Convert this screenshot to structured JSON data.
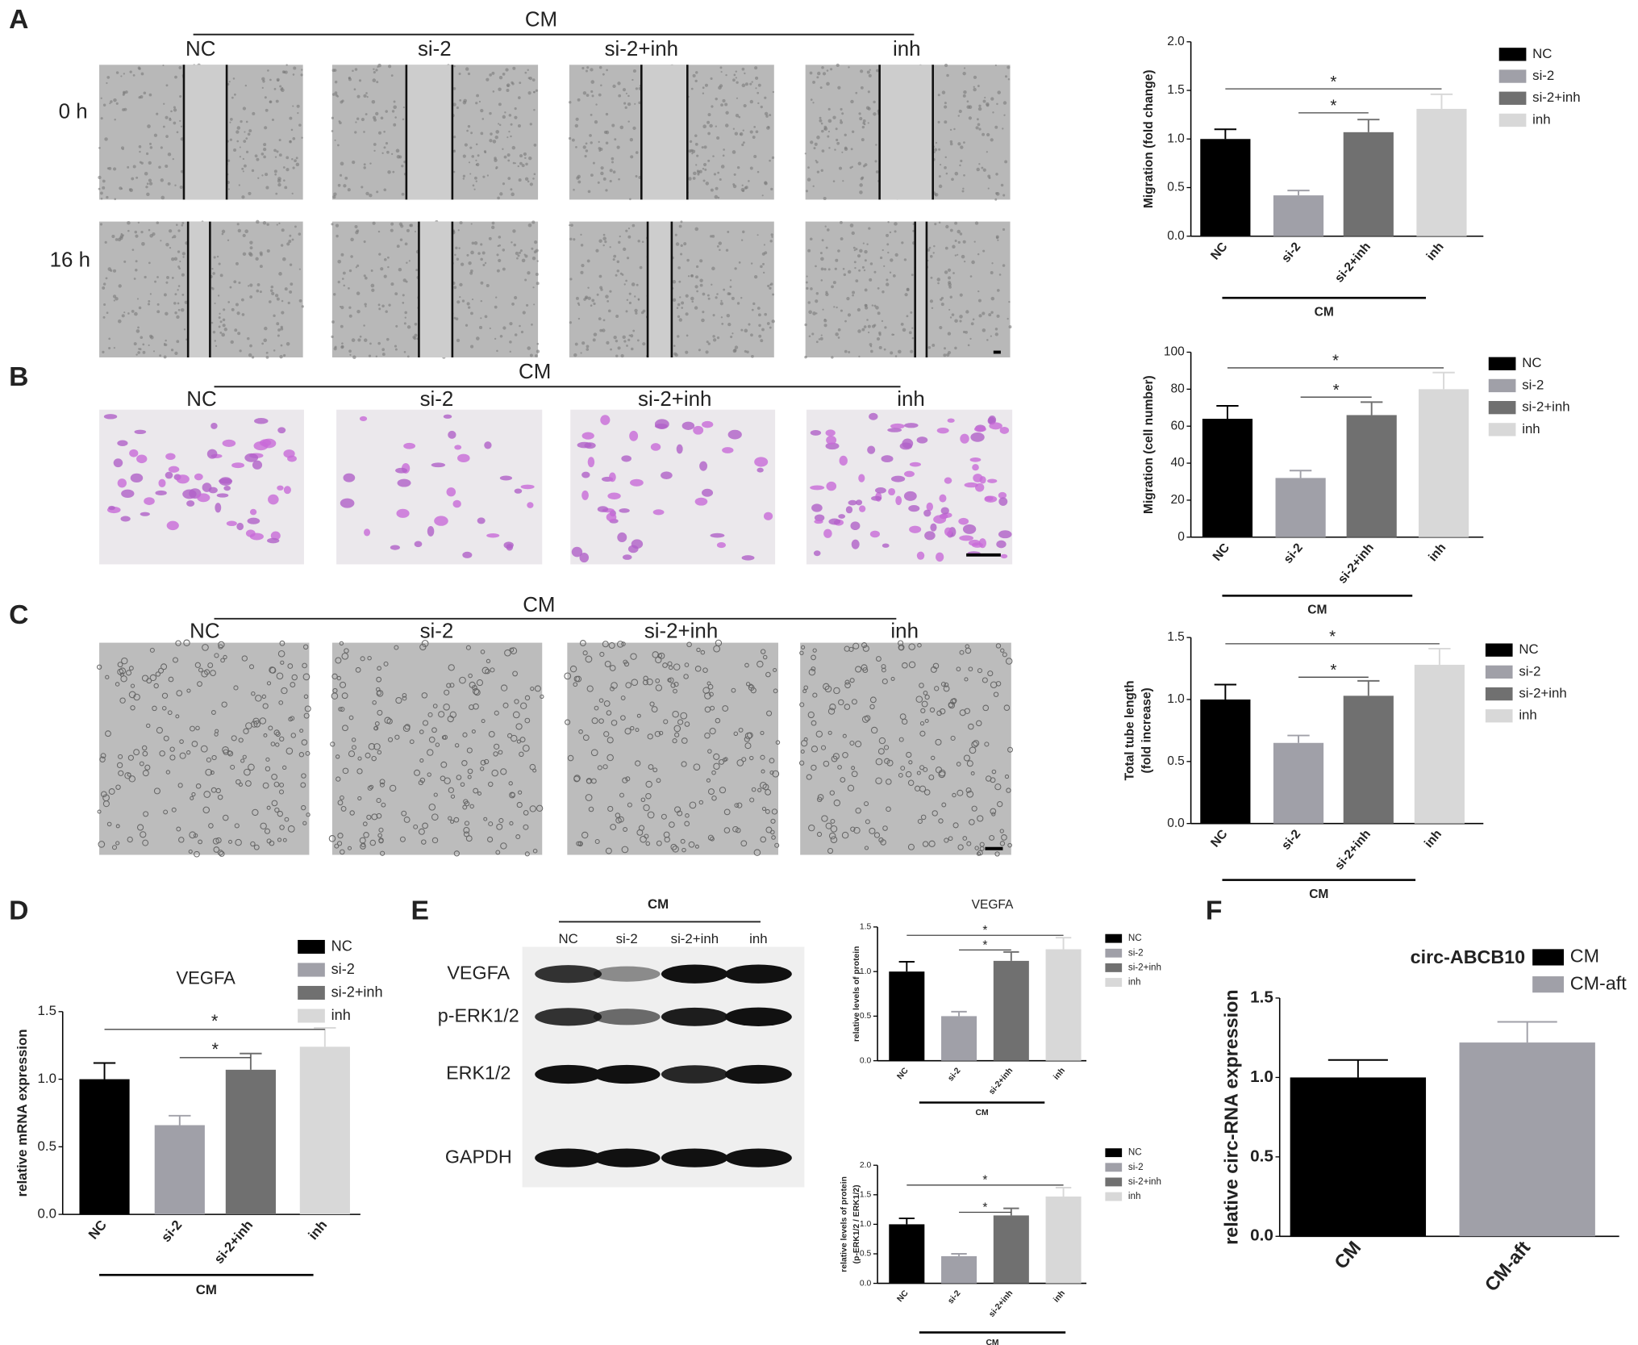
{
  "panels": [
    {
      "label": "A",
      "group": "CM",
      "columns": [
        "NC",
        "si-2",
        "si-2+inh",
        "inh"
      ],
      "rows": [
        "0 h",
        "16 h"
      ]
    },
    {
      "label": "B",
      "group": "CM",
      "columns": [
        "NC",
        "si-2",
        "si-2+inh",
        "inh"
      ]
    },
    {
      "label": "C",
      "group": "CM",
      "columns": [
        "NC",
        "si-2",
        "si-2+inh",
        "inh"
      ]
    },
    {
      "label": "D"
    },
    {
      "label": "E",
      "group": "CM",
      "columns": [
        "NC",
        "si-2",
        "si-2+inh",
        "inh"
      ],
      "rows": [
        "VEGFA",
        "p-ERK1/2",
        "ERK1/2",
        "GAPDH"
      ]
    },
    {
      "label": "F"
    }
  ],
  "chart_data": [
    {
      "type": "bar",
      "ylabel": [
        "Migration (fold change)"
      ],
      "categories": [
        "NC",
        "si-2",
        "si-2+inh",
        "inh"
      ],
      "values": [
        1.0,
        0.42,
        1.07,
        1.31
      ],
      "errors": [
        0.1,
        0.05,
        0.13,
        0.15
      ],
      "colors": [
        "#000000",
        "#a0a0a8",
        "#707070",
        "#d8d8d8"
      ],
      "ylim": [
        0,
        2
      ],
      "yticks": [
        {
          "value": 0,
          "label": "0.0"
        },
        {
          "value": 0.5,
          "label": "0.5"
        },
        {
          "value": 1,
          "label": "1.0"
        },
        {
          "value": 1.5,
          "label": "1.5"
        },
        {
          "value": 2,
          "label": "2.0"
        }
      ],
      "group_label": "CM",
      "annotations": [
        "*",
        "*"
      ]
    },
    {
      "type": "bar",
      "ylabel": [
        "Migration (cell number)"
      ],
      "categories": [
        "NC",
        "si-2",
        "si-2+inh",
        "inh"
      ],
      "values": [
        64,
        32,
        66,
        80
      ],
      "errors": [
        7,
        4,
        7,
        9
      ],
      "colors": [
        "#000000",
        "#a0a0a8",
        "#707070",
        "#d8d8d8"
      ],
      "ylim": [
        0,
        100
      ],
      "yticks": [
        0,
        20,
        40,
        60,
        80,
        100
      ],
      "group_label": "CM",
      "annotations": [
        "*",
        "*"
      ]
    },
    {
      "type": "bar",
      "ylabel": [
        "Total tube length",
        "(fold increase)"
      ],
      "categories": [
        "NC",
        "si-2",
        "si-2+inh",
        "inh"
      ],
      "values": [
        1.0,
        0.65,
        1.03,
        1.28
      ],
      "errors": [
        0.12,
        0.06,
        0.12,
        0.13
      ],
      "colors": [
        "#000000",
        "#a0a0a8",
        "#707070",
        "#d8d8d8"
      ],
      "ylim": [
        0,
        1.5
      ],
      "yticks": [
        {
          "value": 0,
          "label": "0.0"
        },
        {
          "value": 0.5,
          "label": "0.5"
        },
        {
          "value": 1,
          "label": "1.0"
        },
        {
          "value": 1.5,
          "label": "1.5"
        }
      ],
      "group_label": "CM",
      "annotations": [
        "*",
        "*"
      ]
    },
    {
      "type": "bar",
      "title": "VEGFA",
      "ylabel": [
        "relative mRNA expression"
      ],
      "categories": [
        "NC",
        "si-2",
        "si-2+inh",
        "inh"
      ],
      "values": [
        1.0,
        0.66,
        1.07,
        1.24
      ],
      "errors": [
        0.12,
        0.07,
        0.12,
        0.14
      ],
      "colors": [
        "#000000",
        "#a0a0a8",
        "#707070",
        "#d8d8d8"
      ],
      "ylim": [
        0,
        1.5
      ],
      "yticks": [
        {
          "value": 0,
          "label": "0.0"
        },
        {
          "value": 0.5,
          "label": "0.5"
        },
        {
          "value": 1,
          "label": "1.0"
        },
        {
          "value": 1.5,
          "label": "1.5"
        }
      ],
      "group_label": "CM",
      "annotations": [
        "*",
        "*"
      ]
    },
    {
      "type": "bar",
      "title": "VEGFA",
      "ylabel": [
        "relative levels of protein"
      ],
      "categories": [
        "NC",
        "si-2",
        "si-2+inh",
        "inh"
      ],
      "values": [
        1.0,
        0.5,
        1.12,
        1.25
      ],
      "errors": [
        0.11,
        0.05,
        0.1,
        0.13
      ],
      "colors": [
        "#000000",
        "#a0a0a8",
        "#707070",
        "#d8d8d8"
      ],
      "ylim": [
        0,
        1.5
      ],
      "yticks": [
        {
          "value": 0,
          "label": "0.0"
        },
        {
          "value": 0.5,
          "label": "0.5"
        },
        {
          "value": 1,
          "label": "1.0"
        },
        {
          "value": 1.5,
          "label": "1.5"
        }
      ],
      "group_label": "CM",
      "annotations": [
        "*",
        "*"
      ]
    },
    {
      "type": "bar",
      "ylabel": [
        "relative levels of protein",
        "(p-ERK1/2 / ERK1/2)"
      ],
      "categories": [
        "NC",
        "si-2",
        "si-2+inh",
        "inh"
      ],
      "values": [
        1.0,
        0.46,
        1.15,
        1.47
      ],
      "errors": [
        0.1,
        0.04,
        0.12,
        0.15
      ],
      "colors": [
        "#000000",
        "#a0a0a8",
        "#707070",
        "#d8d8d8"
      ],
      "ylim": [
        0,
        2
      ],
      "yticks": [
        {
          "value": 0,
          "label": "0.0"
        },
        {
          "value": 0.5,
          "label": "0.5"
        },
        {
          "value": 1,
          "label": "1.0"
        },
        {
          "value": 1.5,
          "label": "1.5"
        },
        {
          "value": 2,
          "label": "2.0"
        }
      ],
      "group_label": "CM",
      "annotations": [
        "*",
        "*"
      ]
    },
    {
      "type": "bar",
      "title": "circ-ABCB10",
      "ylabel": [
        "relative circ-RNA expression"
      ],
      "categories": [
        "CM",
        "CM-aft"
      ],
      "values": [
        1.0,
        1.22
      ],
      "errors": [
        0.11,
        0.13
      ],
      "colors": [
        "#000000",
        "#a0a0a8"
      ],
      "ylim": [
        0,
        1.5
      ],
      "yticks": [
        {
          "value": 0,
          "label": "0.0"
        },
        {
          "value": 0.5,
          "label": "0.5"
        },
        {
          "value": 1,
          "label": "1.0"
        },
        {
          "value": 1.5,
          "label": "1.5"
        }
      ]
    }
  ]
}
